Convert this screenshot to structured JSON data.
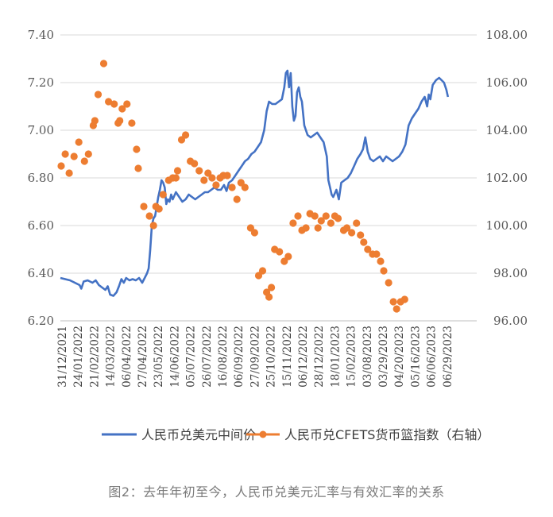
{
  "caption": "图2：去年年初至今，人民币兑美元汇率与有效汇率的关系",
  "colors": {
    "usdcny": "#4472C4",
    "cfets": "#ED7D31",
    "grid": "#D9D9D9",
    "text": "#595959"
  },
  "chart_data": {
    "type": "line",
    "title": "",
    "grid": true,
    "legend_position": "bottom",
    "y_left": {
      "ticks": [
        "6.20",
        "6.40",
        "6.60",
        "6.80",
        "7.00",
        "7.20",
        "7.40"
      ],
      "range": [
        6.2,
        7.4
      ]
    },
    "y_right": {
      "ticks": [
        "96.00",
        "98.00",
        "100.00",
        "102.00",
        "104.00",
        "106.00",
        "108.00"
      ],
      "range": [
        96,
        108
      ]
    },
    "x_tick_labels": [
      "31/12/2021",
      "24/01/2022",
      "21/02/2022",
      "14/03/2022",
      "06/04/2022",
      "27/04/2022",
      "23/05/2022",
      "14/06/2022",
      "05/07/2022",
      "26/07/2022",
      "16/08/2022",
      "06/09/2022",
      "27/09/2022",
      "25/10/2022",
      "15/11/2022",
      "06/12/2022",
      "28/12/2022",
      "18/01/2023",
      "15/02/2023",
      "03/08/2023",
      "03/29/2023",
      "04/20/2023",
      "05/16/2023",
      "06/06/2023",
      "06/29/2023"
    ],
    "x_range": [
      0,
      26.3
    ],
    "series": [
      {
        "name": "人民币兑美元中间价",
        "axis": "left",
        "style": "line",
        "points": [
          [
            0,
            6.38
          ],
          [
            0.3,
            6.375
          ],
          [
            0.6,
            6.37
          ],
          [
            0.9,
            6.36
          ],
          [
            1.2,
            6.35
          ],
          [
            1.3,
            6.335
          ],
          [
            1.45,
            6.365
          ],
          [
            1.7,
            6.37
          ],
          [
            2.0,
            6.36
          ],
          [
            2.2,
            6.37
          ],
          [
            2.4,
            6.35
          ],
          [
            2.6,
            6.34
          ],
          [
            2.8,
            6.33
          ],
          [
            2.95,
            6.345
          ],
          [
            3.1,
            6.31
          ],
          [
            3.3,
            6.305
          ],
          [
            3.5,
            6.32
          ],
          [
            3.65,
            6.345
          ],
          [
            3.8,
            6.375
          ],
          [
            3.95,
            6.36
          ],
          [
            4.1,
            6.38
          ],
          [
            4.3,
            6.37
          ],
          [
            4.5,
            6.375
          ],
          [
            4.7,
            6.37
          ],
          [
            4.9,
            6.38
          ],
          [
            5.1,
            6.36
          ],
          [
            5.25,
            6.38
          ],
          [
            5.4,
            6.4
          ],
          [
            5.5,
            6.42
          ],
          [
            5.6,
            6.5
          ],
          [
            5.7,
            6.6
          ],
          [
            5.8,
            6.63
          ],
          [
            5.9,
            6.64
          ],
          [
            6.0,
            6.68
          ],
          [
            6.1,
            6.72
          ],
          [
            6.2,
            6.75
          ],
          [
            6.3,
            6.79
          ],
          [
            6.4,
            6.78
          ],
          [
            6.5,
            6.76
          ],
          [
            6.6,
            6.69
          ],
          [
            6.7,
            6.71
          ],
          [
            6.8,
            6.7
          ],
          [
            6.9,
            6.73
          ],
          [
            7.0,
            6.71
          ],
          [
            7.2,
            6.74
          ],
          [
            7.4,
            6.72
          ],
          [
            7.6,
            6.7
          ],
          [
            7.8,
            6.71
          ],
          [
            8.0,
            6.73
          ],
          [
            8.2,
            6.72
          ],
          [
            8.4,
            6.71
          ],
          [
            8.6,
            6.72
          ],
          [
            8.8,
            6.73
          ],
          [
            9.0,
            6.74
          ],
          [
            9.2,
            6.74
          ],
          [
            9.4,
            6.75
          ],
          [
            9.6,
            6.76
          ],
          [
            9.8,
            6.75
          ],
          [
            10.0,
            6.75
          ],
          [
            10.2,
            6.77
          ],
          [
            10.35,
            6.745
          ],
          [
            10.5,
            6.78
          ],
          [
            10.7,
            6.79
          ],
          [
            10.9,
            6.81
          ],
          [
            11.1,
            6.83
          ],
          [
            11.3,
            6.85
          ],
          [
            11.5,
            6.87
          ],
          [
            11.7,
            6.88
          ],
          [
            11.9,
            6.9
          ],
          [
            12.1,
            6.91
          ],
          [
            12.3,
            6.93
          ],
          [
            12.5,
            6.95
          ],
          [
            12.7,
            7.0
          ],
          [
            12.85,
            7.08
          ],
          [
            13.0,
            7.12
          ],
          [
            13.2,
            7.11
          ],
          [
            13.4,
            7.11
          ],
          [
            13.6,
            7.12
          ],
          [
            13.8,
            7.13
          ],
          [
            13.95,
            7.18
          ],
          [
            14.05,
            7.24
          ],
          [
            14.15,
            7.25
          ],
          [
            14.25,
            7.18
          ],
          [
            14.35,
            7.24
          ],
          [
            14.45,
            7.1
          ],
          [
            14.55,
            7.04
          ],
          [
            14.65,
            7.06
          ],
          [
            14.75,
            7.16
          ],
          [
            14.85,
            7.18
          ],
          [
            14.95,
            7.14
          ],
          [
            15.05,
            7.12
          ],
          [
            15.2,
            7.02
          ],
          [
            15.4,
            6.98
          ],
          [
            15.6,
            6.97
          ],
          [
            15.8,
            6.98
          ],
          [
            16.0,
            6.99
          ],
          [
            16.2,
            6.97
          ],
          [
            16.4,
            6.95
          ],
          [
            16.6,
            6.89
          ],
          [
            16.7,
            6.79
          ],
          [
            16.8,
            6.76
          ],
          [
            16.9,
            6.73
          ],
          [
            17.0,
            6.72
          ],
          [
            17.2,
            6.75
          ],
          [
            17.35,
            6.71
          ],
          [
            17.5,
            6.78
          ],
          [
            17.7,
            6.79
          ],
          [
            17.9,
            6.8
          ],
          [
            18.1,
            6.82
          ],
          [
            18.3,
            6.85
          ],
          [
            18.5,
            6.88
          ],
          [
            18.7,
            6.9
          ],
          [
            18.85,
            6.92
          ],
          [
            19.0,
            6.97
          ],
          [
            19.15,
            6.91
          ],
          [
            19.3,
            6.88
          ],
          [
            19.5,
            6.87
          ],
          [
            19.7,
            6.88
          ],
          [
            19.9,
            6.89
          ],
          [
            20.1,
            6.87
          ],
          [
            20.3,
            6.89
          ],
          [
            20.5,
            6.88
          ],
          [
            20.7,
            6.87
          ],
          [
            20.9,
            6.88
          ],
          [
            21.1,
            6.89
          ],
          [
            21.3,
            6.91
          ],
          [
            21.5,
            6.94
          ],
          [
            21.7,
            7.02
          ],
          [
            21.9,
            7.05
          ],
          [
            22.1,
            7.07
          ],
          [
            22.3,
            7.09
          ],
          [
            22.5,
            7.12
          ],
          [
            22.7,
            7.14
          ],
          [
            22.85,
            7.1
          ],
          [
            22.95,
            7.15
          ],
          [
            23.05,
            7.13
          ],
          [
            23.2,
            7.19
          ],
          [
            23.4,
            7.21
          ],
          [
            23.6,
            7.22
          ],
          [
            23.75,
            7.21
          ],
          [
            23.9,
            7.2
          ],
          [
            24.05,
            7.17
          ],
          [
            24.15,
            7.14
          ]
        ]
      },
      {
        "name": "人民币兑CFETS货币篮指数（右轴）",
        "axis": "right",
        "style": "markers",
        "points": [
          [
            0.05,
            102.5
          ],
          [
            0.3,
            103.0
          ],
          [
            0.55,
            102.2
          ],
          [
            0.85,
            102.9
          ],
          [
            1.15,
            103.5
          ],
          [
            1.5,
            102.7
          ],
          [
            1.75,
            103.0
          ],
          [
            2.05,
            104.2
          ],
          [
            2.15,
            104.4
          ],
          [
            2.35,
            105.5
          ],
          [
            2.7,
            106.8
          ],
          [
            3.0,
            105.2
          ],
          [
            3.35,
            105.1
          ],
          [
            3.6,
            104.3
          ],
          [
            3.7,
            104.4
          ],
          [
            3.85,
            104.9
          ],
          [
            4.15,
            105.1
          ],
          [
            4.45,
            104.3
          ],
          [
            4.75,
            103.2
          ],
          [
            4.85,
            102.4
          ],
          [
            5.2,
            100.8
          ],
          [
            5.55,
            100.4
          ],
          [
            5.8,
            100.0
          ],
          [
            5.95,
            100.8
          ],
          [
            6.15,
            100.7
          ],
          [
            6.4,
            101.3
          ],
          [
            6.75,
            101.9
          ],
          [
            7.0,
            102.0
          ],
          [
            7.2,
            102.0
          ],
          [
            7.3,
            102.3
          ],
          [
            7.55,
            103.6
          ],
          [
            7.8,
            103.8
          ],
          [
            8.1,
            102.7
          ],
          [
            8.35,
            102.6
          ],
          [
            8.65,
            102.3
          ],
          [
            8.95,
            101.9
          ],
          [
            9.2,
            102.2
          ],
          [
            9.45,
            102.0
          ],
          [
            9.7,
            101.7
          ],
          [
            9.95,
            102.0
          ],
          [
            10.15,
            102.1
          ],
          [
            10.4,
            102.1
          ],
          [
            10.7,
            101.6
          ],
          [
            11.0,
            101.1
          ],
          [
            11.25,
            101.8
          ],
          [
            11.5,
            101.6
          ],
          [
            11.85,
            99.9
          ],
          [
            12.1,
            99.7
          ],
          [
            12.35,
            97.9
          ],
          [
            12.6,
            98.1
          ],
          [
            12.85,
            97.2
          ],
          [
            13.0,
            97.0
          ],
          [
            13.15,
            97.4
          ],
          [
            13.35,
            99.0
          ],
          [
            13.65,
            98.9
          ],
          [
            13.95,
            98.5
          ],
          [
            14.2,
            98.7
          ],
          [
            14.5,
            100.1
          ],
          [
            14.8,
            100.4
          ],
          [
            15.05,
            99.8
          ],
          [
            15.3,
            99.9
          ],
          [
            15.55,
            100.5
          ],
          [
            15.85,
            100.4
          ],
          [
            16.05,
            99.9
          ],
          [
            16.25,
            100.2
          ],
          [
            16.55,
            100.4
          ],
          [
            16.85,
            100.1
          ],
          [
            17.1,
            100.4
          ],
          [
            17.3,
            100.3
          ],
          [
            17.65,
            99.8
          ],
          [
            17.85,
            99.9
          ],
          [
            18.15,
            99.7
          ],
          [
            18.45,
            100.1
          ],
          [
            18.7,
            99.6
          ],
          [
            18.9,
            99.3
          ],
          [
            19.15,
            99.0
          ],
          [
            19.45,
            98.8
          ],
          [
            19.7,
            98.8
          ],
          [
            19.95,
            98.5
          ],
          [
            20.15,
            98.1
          ],
          [
            20.45,
            97.6
          ],
          [
            20.75,
            96.8
          ],
          [
            20.95,
            96.5
          ],
          [
            21.2,
            96.8
          ],
          [
            21.45,
            96.9
          ]
        ]
      }
    ]
  }
}
